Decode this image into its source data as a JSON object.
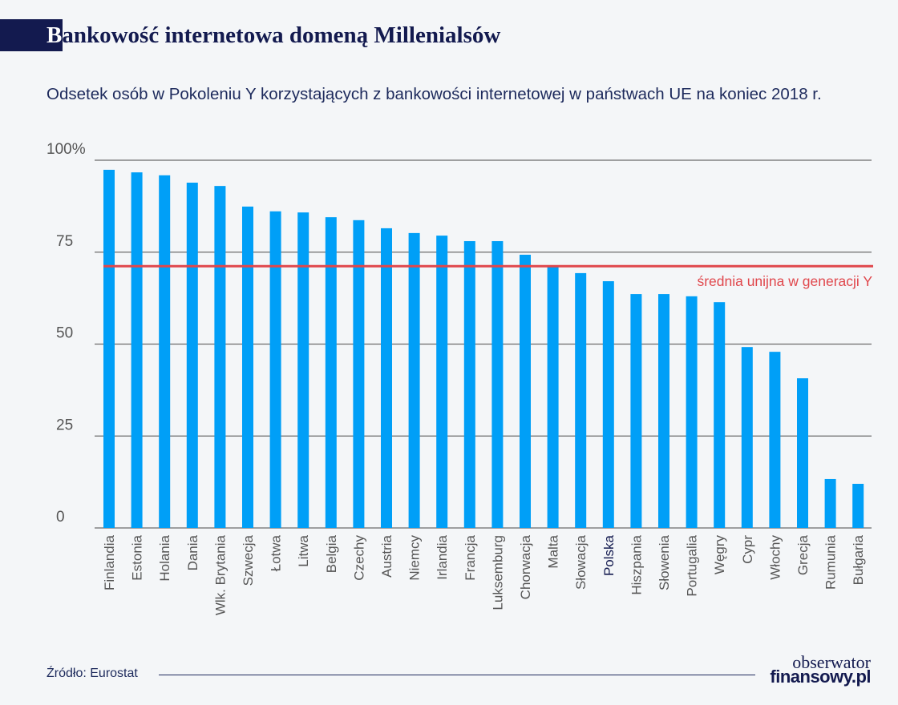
{
  "header": {
    "title_first_letter": "B",
    "title_rest": "ankowość internetowa domeną Millenialsów",
    "subtitle": "Odsetek osób w Pokoleniu Y korzystających z bankowości internetowej w państwach UE na koniec 2018 r."
  },
  "footer": {
    "source": "Źródło: Eurostat",
    "logo_line1": "obserwator",
    "logo_line2": "finansowy.pl"
  },
  "chart_data": {
    "type": "bar",
    "title": "",
    "xlabel": "",
    "ylabel": "",
    "ylim": [
      0,
      100
    ],
    "y_ticks": [
      {
        "value": 0,
        "label": "0"
      },
      {
        "value": 25,
        "label": "25"
      },
      {
        "value": 50,
        "label": "50"
      },
      {
        "value": 75,
        "label": "75"
      },
      {
        "value": 100,
        "label": "100%"
      }
    ],
    "grid": true,
    "categories": [
      "Finlandia",
      "Estonia",
      "Holania",
      "Dania",
      "Wlk. Brytania",
      "Szwecja",
      "Łotwa",
      "Litwa",
      "Belgia",
      "Czechy",
      "Austria",
      "Niemcy",
      "Irlandia",
      "Francja",
      "Luksemburg",
      "Chorwacja",
      "Malta",
      "Słowacja",
      "Polska",
      "Hiszpania",
      "Słowenia",
      "Portugalia",
      "Węgry",
      "Cypr",
      "Włochy",
      "Grecja",
      "Rumunia",
      "Bułgaria"
    ],
    "values": [
      97.4,
      96.7,
      95.9,
      93.9,
      93.0,
      87.4,
      86.1,
      85.8,
      84.5,
      83.7,
      81.5,
      80.2,
      79.5,
      78.0,
      78.0,
      74.3,
      71.0,
      69.3,
      67.1,
      63.6,
      63.6,
      63.0,
      61.4,
      49.2,
      47.9,
      40.7,
      13.3,
      12.0
    ],
    "highlight_category": "Polska",
    "reference_line": {
      "value": 71.2,
      "label": "średnia unijna w generacji Y",
      "color": "#e0474c"
    },
    "colors": {
      "bar": "#009ff7",
      "highlight_label": "#131a4f",
      "label": "#555555",
      "grid": "#6b6b6b"
    }
  }
}
